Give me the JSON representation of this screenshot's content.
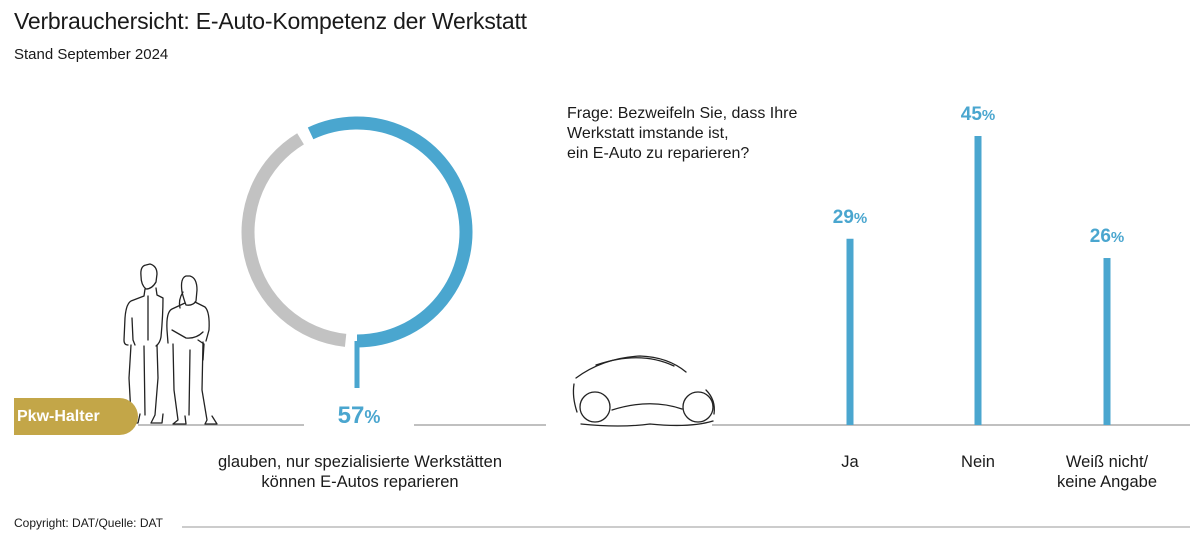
{
  "header": {
    "title": "Verbrauchersicht: E-Auto-Kompetenz der Werkstatt",
    "subtitle": "Stand September 2024"
  },
  "badge": {
    "label": "Pkw-Halter"
  },
  "footer": {
    "copyright": "Copyright: DAT/Quelle: DAT"
  },
  "colors": {
    "accent": "#4aa6cf",
    "ring_rest": "#c2c2c2",
    "badge": "#c3a648",
    "axis": "#9a9a9a"
  },
  "chart_data": [
    {
      "type": "pie",
      "title": "",
      "value": 57,
      "value_label": "57",
      "unit": "%",
      "label_lines": [
        "glauben, nur spezialisierte Werkstätten",
        "können E-Autos reparieren"
      ]
    },
    {
      "type": "bar",
      "title": "",
      "question_lines": [
        "Frage: Bezweifeln Sie, dass Ihre",
        "Werkstatt imstande ist,",
        "ein E-Auto zu reparieren?"
      ],
      "categories": [
        {
          "lines": [
            "Ja"
          ]
        },
        {
          "lines": [
            "Nein"
          ]
        },
        {
          "lines": [
            "Weiß nicht/",
            "keine Angabe"
          ]
        }
      ],
      "values": [
        29,
        45,
        26
      ],
      "value_labels": [
        "29",
        "45",
        "26"
      ],
      "unit": "%",
      "ylim": [
        0,
        45
      ]
    }
  ]
}
